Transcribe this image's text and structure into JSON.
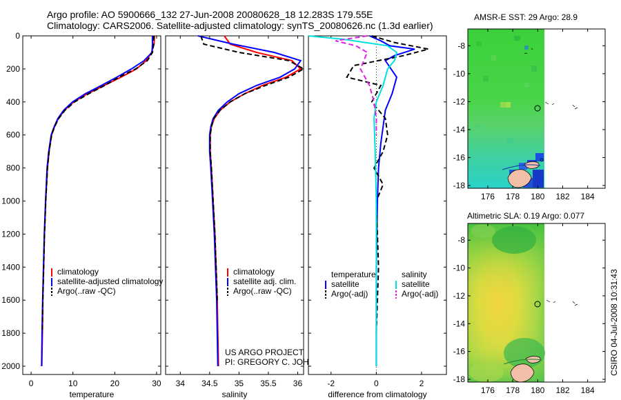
{
  "header": {
    "title_line1": "Argo profile: AO 5900666_132 27-Jun-2008 20080628_18 12.283S 179.55E",
    "title_line2": "Climatology: CARS2006. Satellite-adjusted climatology: synTS_20080626.nc (1.3d earlier)"
  },
  "colors": {
    "climatology": "#ff0000",
    "satellite": "#0000ff",
    "argo": "#000000",
    "salinity_satellite": "#00e0e0",
    "salinity_argo": "#e020e0"
  },
  "chart_data": [
    {
      "type": "line",
      "id": "temperature",
      "xlabel": "temperature",
      "ylabel": "",
      "xlim": [
        -2,
        31
      ],
      "ylim": [
        2050,
        0
      ],
      "xticks": [
        0,
        10,
        20,
        30
      ],
      "xtick_labels": [
        "0",
        "10",
        "20",
        "30"
      ],
      "yticks": [
        0,
        200,
        400,
        600,
        800,
        1000,
        1200,
        1400,
        1600,
        1800,
        2000
      ],
      "ytick_labels": [
        "0",
        "200",
        "400",
        "600",
        "800",
        "1000",
        "1200",
        "1400",
        "1600",
        "1800",
        "2000"
      ],
      "legend": [
        "climatology",
        "satellite-adjusted climatology",
        "Argo(..raw -QC)"
      ],
      "series": [
        {
          "name": "climatology",
          "color": "#ff0000",
          "x": [
            29.5,
            29.4,
            28.8,
            27.5,
            25.2,
            21.5,
            17.5,
            13.5,
            10.2,
            8.0,
            6.5,
            5.6,
            4.9,
            4.3,
            3.9,
            3.5,
            3.2,
            3.0,
            2.8,
            2.7,
            2.55
          ],
          "y": [
            0,
            50,
            100,
            150,
            200,
            250,
            300,
            350,
            400,
            450,
            500,
            550,
            600,
            700,
            800,
            1000,
            1200,
            1400,
            1600,
            1800,
            2000
          ]
        },
        {
          "name": "satellite-adjusted climatology",
          "color": "#0000ff",
          "x": [
            29.0,
            29.0,
            28.9,
            27.0,
            24.0,
            20.5,
            16.8,
            13.0,
            9.9,
            7.8,
            6.4,
            5.5,
            4.8,
            4.2,
            3.8,
            3.45,
            3.15,
            2.95,
            2.75,
            2.6,
            2.5
          ],
          "y": [
            0,
            50,
            100,
            150,
            200,
            250,
            300,
            350,
            400,
            450,
            500,
            550,
            600,
            700,
            800,
            1000,
            1200,
            1400,
            1600,
            1800,
            2000
          ]
        },
        {
          "name": "Argo(..raw -QC)",
          "color": "#000000",
          "dashed": true,
          "x": [
            29.3,
            29.3,
            29.0,
            27.8,
            25.0,
            21.0,
            17.6,
            13.8,
            10.4,
            8.1,
            6.6,
            5.6,
            4.9,
            4.3,
            3.9,
            3.5,
            3.2,
            3.0,
            2.8,
            2.65
          ],
          "y": [
            0,
            50,
            100,
            150,
            200,
            250,
            300,
            350,
            400,
            450,
            500,
            550,
            600,
            700,
            800,
            1000,
            1200,
            1400,
            1600,
            1800
          ]
        }
      ]
    },
    {
      "type": "line",
      "id": "salinity",
      "xlabel": "salinity",
      "ylabel": "",
      "xlim": [
        33.75,
        36.1
      ],
      "ylim": [
        2050,
        0
      ],
      "xticks": [
        34,
        34.5,
        35,
        35.5,
        36
      ],
      "xtick_labels": [
        "34",
        "34.5",
        "35",
        "35.5",
        "36"
      ],
      "legend": [
        "climatology",
        "satellite adj. clim.",
        "Argo(..raw -QC)"
      ],
      "series": [
        {
          "name": "climatology",
          "color": "#ff0000",
          "x": [
            34.75,
            34.85,
            35.3,
            35.9,
            36.05,
            35.8,
            35.4,
            35.1,
            34.85,
            34.68,
            34.58,
            34.53,
            34.51,
            34.51,
            34.53,
            34.56,
            34.59,
            34.61,
            34.63,
            34.65
          ],
          "y": [
            0,
            50,
            100,
            150,
            200,
            250,
            300,
            350,
            400,
            450,
            500,
            550,
            600,
            700,
            800,
            1000,
            1200,
            1400,
            1600,
            2000
          ]
        },
        {
          "name": "satellite adj. clim.",
          "color": "#0000ff",
          "x": [
            34.3,
            34.9,
            35.6,
            36.05,
            35.95,
            35.7,
            35.3,
            35.0,
            34.8,
            34.65,
            34.56,
            34.52,
            34.5,
            34.5,
            34.52,
            34.55,
            34.58,
            34.6,
            34.62,
            34.64
          ],
          "y": [
            0,
            50,
            100,
            150,
            200,
            250,
            300,
            350,
            400,
            450,
            500,
            550,
            600,
            700,
            800,
            1000,
            1200,
            1400,
            1600,
            2000
          ]
        },
        {
          "name": "Argo(..raw -QC)",
          "color": "#000000",
          "dashed": true,
          "x": [
            34.35,
            34.4,
            35.0,
            35.85,
            36.1,
            35.85,
            35.45,
            35.1,
            34.85,
            34.68,
            34.57,
            34.53,
            34.51,
            34.51,
            34.53,
            34.56,
            34.59,
            34.61,
            34.63
          ],
          "y": [
            0,
            50,
            100,
            150,
            200,
            250,
            300,
            350,
            400,
            450,
            500,
            550,
            600,
            700,
            800,
            1000,
            1200,
            1400,
            1600
          ]
        }
      ],
      "annotations": [
        "US ARGO PROJECT",
        "PI: GREGORY C. JOHNSON"
      ]
    },
    {
      "type": "line",
      "id": "difference",
      "xlabel": "difference from climatology",
      "ylabel": "",
      "xlim": [
        -3.0,
        3.1
      ],
      "ylim": [
        2050,
        0
      ],
      "xticks": [
        -2,
        0,
        2
      ],
      "xtick_labels": [
        "-2",
        "0",
        "2"
      ],
      "legend_headers": [
        "temperature",
        "salinity"
      ],
      "legend": [
        "satellite",
        "Argo(-adj)",
        "satellite",
        "Argo(-adj)"
      ],
      "series": [
        {
          "name": "temperature satellite",
          "color": "#0000ff",
          "x": [
            -0.3,
            0.2,
            0.6,
            1.7,
            0.8,
            0.4,
            0.9,
            0.7,
            0.4,
            0.3,
            0.2,
            0.1,
            0.05,
            0.0,
            0.0,
            0.0
          ],
          "y": [
            0,
            30,
            60,
            80,
            120,
            150,
            250,
            350,
            450,
            550,
            650,
            800,
            1000,
            1400,
            1800,
            2000
          ]
        },
        {
          "name": "temperature Argo(-adj)",
          "color": "#000000",
          "dashed": true,
          "x": [
            -0.2,
            0.8,
            2.3,
            1.2,
            -1.0,
            -1.3,
            0.2,
            -0.2,
            0.4,
            0.5,
            0.3,
            -0.1,
            0.3,
            0.0,
            0.1,
            0.0
          ],
          "y": [
            0,
            40,
            80,
            120,
            180,
            250,
            300,
            400,
            500,
            600,
            700,
            800,
            900,
            1000,
            1400,
            1800
          ]
        },
        {
          "name": "salinity satellite",
          "color": "#00e0e0",
          "x": [
            -3.0,
            -1.5,
            0.5,
            0.9,
            0.8,
            0.5,
            0.3,
            0.0,
            -0.1,
            -0.05,
            0.0,
            0.0,
            0.0
          ],
          "y": [
            0,
            20,
            60,
            100,
            150,
            200,
            300,
            400,
            500,
            700,
            1000,
            1500,
            2000
          ]
        },
        {
          "name": "salinity Argo(-adj)",
          "color": "#e020e0",
          "dashed": true,
          "x": [
            -0.4,
            -1.8,
            -0.9,
            -0.4,
            -0.7,
            -0.3,
            -0.1,
            0.0,
            0.0
          ],
          "y": [
            0,
            30,
            60,
            100,
            200,
            300,
            400,
            500,
            600
          ]
        }
      ]
    },
    {
      "type": "heatmap",
      "id": "sst_map",
      "title": "AMSR-E SST: 29 Argo: 28.9",
      "xlim": [
        174.4,
        185.4
      ],
      "ylim": [
        -18.2,
        -6.8
      ],
      "xticks": [
        176,
        178,
        180,
        182,
        184
      ],
      "xtick_labels": [
        "176",
        "178",
        "180",
        "182",
        "184"
      ],
      "yticks": [
        -8,
        -10,
        -12,
        -14,
        -16,
        -18
      ],
      "ytick_labels": [
        "-8",
        "-10",
        "-12",
        "-14",
        "-16",
        "-18"
      ],
      "data_extent_east": 180,
      "float_position": [
        179.55,
        -12.283
      ]
    },
    {
      "type": "heatmap",
      "id": "sla_map",
      "title": "Altimetric SLA: 0.19 Argo: 0.077",
      "xlim": [
        174.4,
        185.4
      ],
      "ylim": [
        -18.2,
        -6.8
      ],
      "xticks": [
        176,
        178,
        180,
        182,
        184
      ],
      "xtick_labels": [
        "176",
        "178",
        "180",
        "182",
        "184"
      ],
      "yticks": [
        -8,
        -10,
        -12,
        -14,
        -16,
        -18
      ],
      "ytick_labels": [
        "-8",
        "-10",
        "-12",
        "-14",
        "-16",
        "-18"
      ],
      "data_extent_east": 180,
      "float_position": [
        179.55,
        -12.283
      ]
    }
  ],
  "footer": {
    "credit": "CSIRO 04-Jul-2008 10:31:43"
  }
}
